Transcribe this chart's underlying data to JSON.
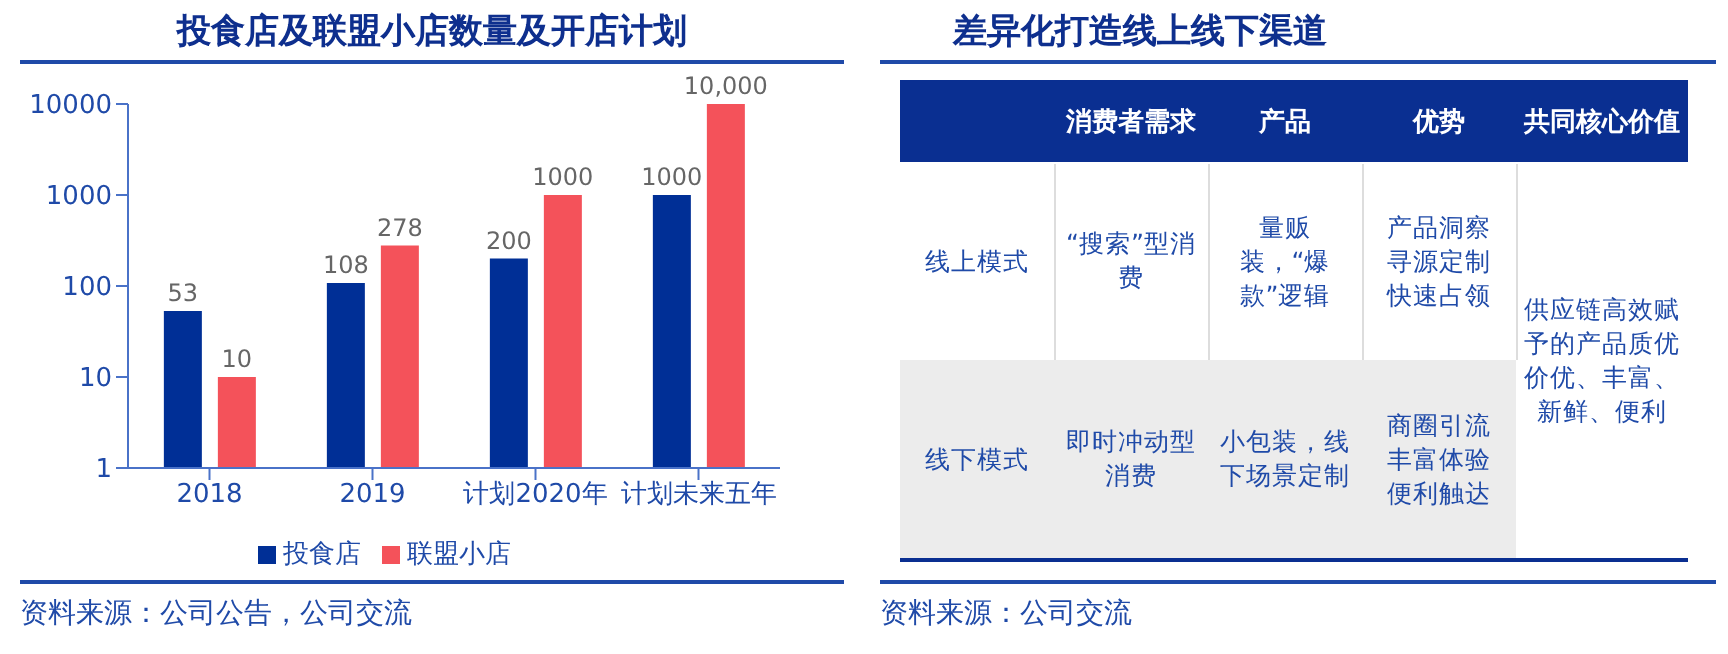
{
  "chart_data": [
    {
      "type": "bar",
      "title": "投食店及联盟小店数量及开店计划",
      "categories": [
        "2018",
        "2019",
        "计划2020年",
        "计划未来五年"
      ],
      "series": [
        {
          "name": "投食店",
          "color": "#002f96",
          "values": [
            53,
            108,
            200,
            1000
          ],
          "value_labels": [
            "53",
            "108",
            "200",
            "1000"
          ]
        },
        {
          "name": "联盟小店",
          "color": "#f4525a",
          "values": [
            10,
            278,
            1000,
            10000
          ],
          "value_labels": [
            "10",
            "278",
            "1000",
            "10,000"
          ]
        }
      ],
      "log": "y",
      "ylim": [
        1,
        10000
      ],
      "yticks": [
        1,
        10,
        100,
        1000,
        10000
      ],
      "grid": false,
      "legend": "bottom",
      "annotations": [
        "资料来源：公司公告，公司交流"
      ]
    },
    {
      "type": "other",
      "title": "差异化打造线上线下渠道",
      "annotations": [
        "消费者需求",
        "产品",
        "优势",
        "共同核心价值",
        "线上模式",
        "“搜索”型消费",
        "量贩装，“爆款”逻辑",
        "产品洞察寻源定制快速占领",
        "线下模式",
        "即时冲动型消费",
        "小包装，线下场景定制",
        "商圈引流丰富体验便利触达",
        "供应链高效赋予的产品质优价优、丰富、新鲜、便利",
        "资料来源：公司交流"
      ]
    }
  ]
}
